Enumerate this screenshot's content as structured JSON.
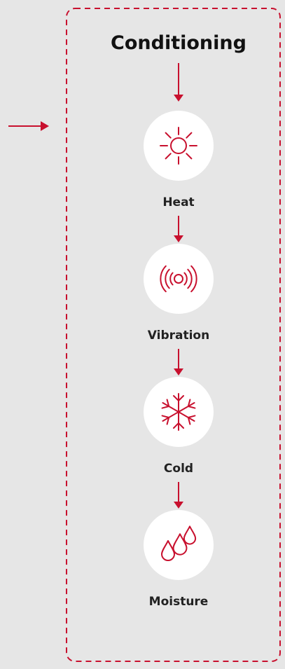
{
  "title": "Conditioning",
  "nodes": [
    {
      "label": "Heat"
    },
    {
      "label": "Vibration"
    },
    {
      "label": "Cold"
    },
    {
      "label": "Moisture"
    }
  ]
}
